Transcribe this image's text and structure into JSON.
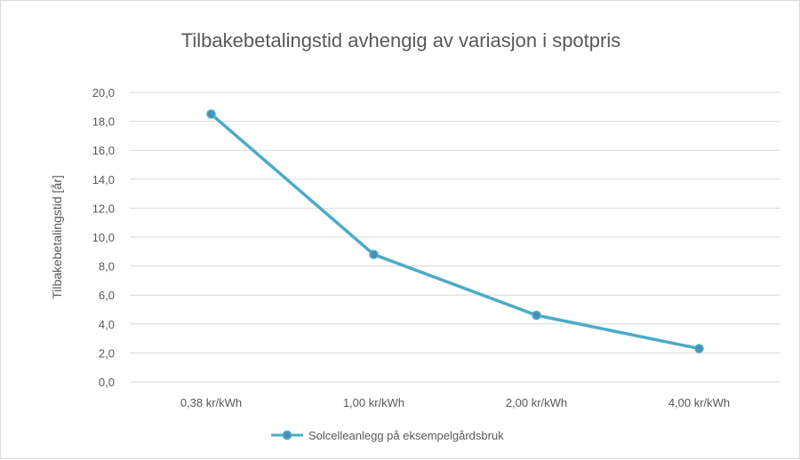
{
  "chart_data": {
    "type": "line",
    "title": "Tilbakebetalingstid avhengig av variasjon i spotpris",
    "ylabel": "Tilbakebetalingstid [år]",
    "xlabel": "",
    "categories": [
      "0,38 kr/kWh",
      "1,00 kr/kWh",
      "2,00 kr/kWh",
      "4,00 kr/kWh"
    ],
    "series": [
      {
        "name": "Solcelleanlegg på eksempelgårdsbruk",
        "values": [
          18.5,
          8.8,
          4.6,
          2.3
        ]
      }
    ],
    "ylim": [
      0,
      20
    ],
    "yticks": [
      "0,0",
      "2,0",
      "4,0",
      "6,0",
      "8,0",
      "10,0",
      "12,0",
      "14,0",
      "16,0",
      "18,0",
      "20,0"
    ],
    "ytick_values": [
      0,
      2,
      4,
      6,
      8,
      10,
      12,
      14,
      16,
      18,
      20
    ],
    "grid": true,
    "legend": "bottom",
    "colors": {
      "line": "#4bacc6",
      "marker": "#4a90b8",
      "grid": "#d9d9d9",
      "text": "#595959"
    }
  }
}
